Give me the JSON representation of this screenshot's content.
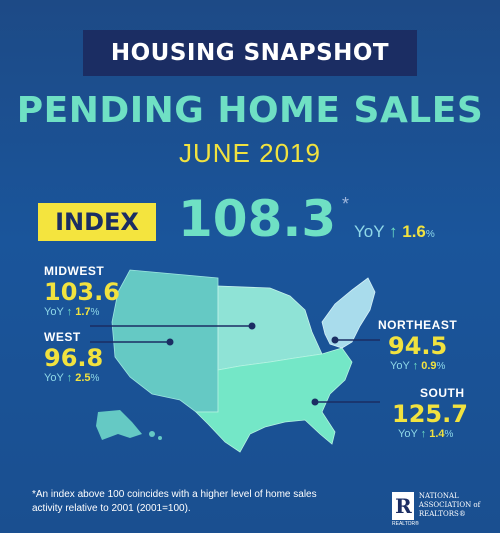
{
  "header": {
    "banner": "HOUSING SNAPSHOT",
    "title": "PENDING HOME SALES",
    "month": "JUNE 2019"
  },
  "index": {
    "label": "INDEX",
    "value": "108.3",
    "star": "*",
    "yoy_label": "YoY",
    "yoy_change": "1.6",
    "pct": "%"
  },
  "regions": {
    "midwest": {
      "name": "MIDWEST",
      "value": "103.6",
      "yoy_label": "YoY",
      "yoy_change": "1.7",
      "pct": "%"
    },
    "west": {
      "name": "WEST",
      "value": "96.8",
      "yoy_label": "YoY",
      "yoy_change": "2.5",
      "pct": "%"
    },
    "northeast": {
      "name": "NORTHEAST",
      "value": "94.5",
      "yoy_label": "YoY",
      "yoy_change": "0.9",
      "pct": "%"
    },
    "south": {
      "name": "SOUTH",
      "value": "125.7",
      "yoy_label": "YoY",
      "yoy_change": "1.4",
      "pct": "%"
    }
  },
  "footnote": "*An index above 100 coincides with a higher level of home sales activity relative to 2001 (2001=100).",
  "logo": {
    "mark": "R",
    "line1": "NATIONAL",
    "line2": "ASSOCIATION of",
    "line3": "REALTORS®",
    "small": "REALTOR®"
  },
  "colors": {
    "teal": "#6fe0c4",
    "yellow": "#f1e23f",
    "navy": "#1b2d63",
    "background": "#1a559b"
  }
}
